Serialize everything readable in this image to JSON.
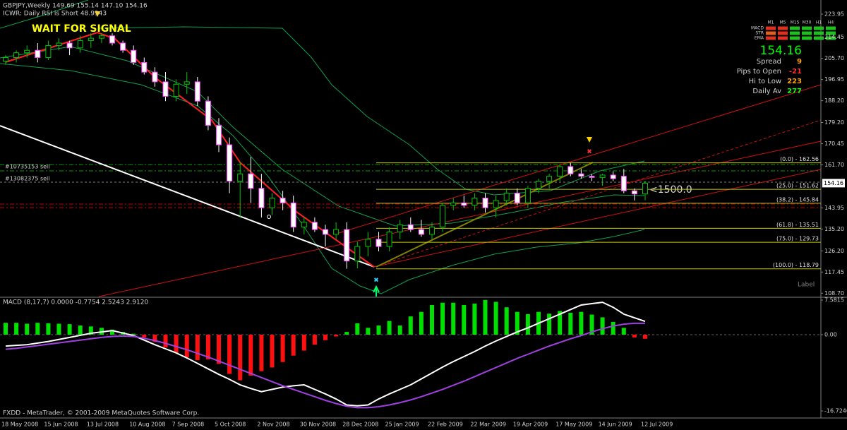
{
  "chart_data": [
    {
      "type": "candlestick",
      "title": "GBPJPY,Weekly  149.69 155.14 147.10 154.16",
      "subtitle": "ICWR: Daily RSI is Short 48.9343",
      "categories": [
        "18 May 2008",
        null,
        null,
        null,
        "15 Jun 2008",
        null,
        null,
        null,
        "13 Jul 2008",
        null,
        null,
        null,
        "10 Aug 2008",
        null,
        null,
        null,
        "7 Sep 2008",
        null,
        null,
        null,
        "5 Oct 2008",
        null,
        null,
        null,
        "2 Nov 2008",
        null,
        null,
        null,
        "30 Nov 2008",
        null,
        null,
        null,
        "28 Dec 2008",
        null,
        null,
        null,
        "25 Jan 2009",
        null,
        null,
        null,
        "22 Feb 2009",
        null,
        null,
        null,
        "22 Mar 2009",
        null,
        null,
        null,
        "19 Apr 2009",
        null,
        null,
        null,
        "17 May 2009",
        null,
        null,
        null,
        "14 Jun 2009",
        null,
        null,
        null,
        "12 Jul 2009"
      ],
      "open": [
        204.5,
        206,
        208,
        209,
        206,
        211,
        212,
        210,
        213,
        214,
        215,
        212,
        209,
        204,
        200,
        196,
        190,
        195,
        196,
        188,
        178,
        170,
        155,
        158,
        152,
        144,
        148,
        146,
        136,
        138,
        135,
        133,
        135,
        122,
        128,
        131,
        128,
        134,
        137,
        135,
        133,
        136,
        145,
        146,
        145,
        148,
        144,
        147,
        150,
        146,
        152,
        155,
        157,
        161,
        158,
        157,
        156.5,
        157.5,
        157,
        151,
        149.69
      ],
      "high": [
        207,
        209,
        211,
        212,
        213,
        214,
        213,
        215,
        216,
        216,
        216,
        213,
        211,
        206,
        202,
        200,
        197,
        200,
        198,
        190,
        181,
        173,
        163,
        165,
        158,
        150,
        151,
        149,
        140,
        140,
        137,
        138,
        138,
        130,
        134,
        134,
        136,
        139,
        140,
        139,
        138,
        146,
        148,
        149,
        150,
        150,
        149,
        152,
        152,
        153,
        156,
        158,
        162,
        162.56,
        160,
        158,
        158,
        159,
        160,
        152,
        155.14
      ],
      "low": [
        203,
        204,
        206,
        204,
        205,
        209,
        207,
        208,
        210,
        212,
        211,
        208,
        203,
        199,
        194,
        188,
        188,
        191,
        186,
        176,
        167,
        150,
        140,
        146,
        140,
        141,
        143,
        134,
        133,
        134,
        128,
        131,
        118.79,
        119,
        124,
        126,
        126,
        131,
        134,
        132,
        131,
        134,
        143,
        144,
        143,
        142,
        140,
        145,
        145,
        144,
        150,
        152,
        155,
        157,
        156,
        155,
        153,
        155,
        150,
        147,
        147.1
      ],
      "close": [
        206,
        208,
        209,
        206,
        211,
        212,
        210,
        213,
        214,
        215,
        212,
        209,
        204,
        200,
        196,
        190,
        195,
        196,
        188,
        178,
        170,
        155,
        158,
        152,
        144,
        148,
        146,
        136,
        138,
        135,
        133,
        135,
        122,
        128,
        131,
        128,
        134,
        137,
        135,
        133,
        136,
        145,
        146,
        145,
        148,
        144,
        147,
        150,
        146,
        152,
        155,
        157,
        161,
        158,
        157,
        156.5,
        157.5,
        156,
        151,
        149.69,
        154.16
      ],
      "up_color": "#00c800",
      "down_color": "#ffffff",
      "down_edge": "#ff40ff",
      "ylim": [
        107.04,
        229.78
      ],
      "yticks": [
        223.95,
        214.45,
        {
          "value": 205.7,
          "label": "205.70"
        },
        196.95,
        {
          "value": 188.2,
          "label": "188.20"
        },
        {
          "value": 179.2,
          "label": "179.20"
        },
        170.45,
        {
          "value": 161.7,
          "label": "161.70"
        },
        143.95,
        {
          "value": 135.2,
          "label": "135.20"
        },
        {
          "value": 126.2,
          "label": "126.20"
        },
        117.45,
        {
          "value": 108.7,
          "label": "108.70"
        }
      ],
      "fib_levels": [
        {
          "value": 162.56,
          "label": "(0.0) - 162.56"
        },
        {
          "value": 151.62,
          "label": "(25.0) - 151.62"
        },
        {
          "value": 145.84,
          "label": "(38.2) - 145.84"
        },
        {
          "value": 135.51,
          "label": "(61.8) - 135.51"
        },
        {
          "value": 129.73,
          "label": "(75.0) - 129.73"
        },
        {
          "value": 118.79,
          "label": "(100.0) - 118.79"
        }
      ],
      "fib_color": "#c8c800"
    },
    {
      "type": "macd",
      "title": "MACD (8,17,7) 0.0000 -0.7754 2.5243 2.9120",
      "histogram": {
        "color": "#00e000",
        "negative_color": "#ff1010",
        "values": [
          2.6,
          2.6,
          2.4,
          2.6,
          2.5,
          2.4,
          2.3,
          2.0,
          1.8,
          1.5,
          1.1,
          0.6,
          0.2,
          -0.6,
          -1.6,
          -2.8,
          -4.0,
          -5.0,
          -5.6,
          -5.4,
          -6.4,
          -8.6,
          -10.0,
          -9.0,
          -8.0,
          -7.2,
          -6.0,
          -4.6,
          -3.5,
          -2.2,
          -1.2,
          -0.4,
          0.6,
          2.5,
          1.5,
          2.0,
          3.0,
          2.0,
          4.0,
          5.0,
          6.5,
          7.0,
          7.0,
          6.5,
          6.8,
          7.6,
          7.2,
          6.0,
          5.0,
          4.5,
          5.0,
          4.6,
          5.2,
          4.8,
          5.0,
          4.4,
          3.8,
          2.8,
          1.5,
          -0.6,
          -0.9
        ]
      },
      "series": [
        {
          "color": "#ffffff",
          "values": [
            -2.5,
            -2.35,
            -2.2,
            -1.85,
            -1.5,
            -1.05,
            -0.6,
            -0.15,
            0.3,
            0.6,
            0.9,
            0.35,
            -0.2,
            -1.2,
            -2.2,
            -3.1,
            -4.0,
            -5.1,
            -6.3,
            -7.5,
            -8.7,
            -9.8,
            -11.0,
            -11.8,
            -12.5,
            -12.0,
            -11.5,
            -11.2,
            -11.0,
            -12.0,
            -13.0,
            -14.1,
            -15.4,
            -15.6,
            -15.4,
            -14.1,
            -13.0,
            -12.0,
            -11.0,
            -9.7,
            -8.4,
            -7.1,
            -5.9,
            -4.8,
            -3.7,
            -2.5,
            -1.4,
            -0.4,
            0.6,
            1.5,
            2.5,
            3.5,
            4.5,
            5.5,
            6.5,
            6.8,
            7.1,
            6.0,
            4.5,
            3.7,
            2.9
          ]
        },
        {
          "color": "#a040e0",
          "values": [
            -3.2,
            -3.0,
            -2.7,
            -2.4,
            -2.1,
            -1.8,
            -1.5,
            -1.2,
            -0.9,
            -0.6,
            -0.4,
            -0.3,
            -0.4,
            -0.8,
            -1.3,
            -1.9,
            -2.6,
            -3.3,
            -4.1,
            -4.9,
            -5.8,
            -6.7,
            -7.6,
            -8.5,
            -9.4,
            -10.3,
            -11.2,
            -12.0,
            -12.8,
            -13.6,
            -14.4,
            -15.1,
            -15.7,
            -16.0,
            -16.0,
            -15.8,
            -15.4,
            -14.9,
            -14.3,
            -13.6,
            -12.8,
            -12.0,
            -11.1,
            -10.2,
            -9.2,
            -8.2,
            -7.2,
            -6.2,
            -5.2,
            -4.3,
            -3.4,
            -2.5,
            -1.7,
            -0.9,
            -0.2,
            0.6,
            1.3,
            1.9,
            2.3,
            2.5,
            2.5
          ]
        }
      ],
      "ylim": [
        -18.27,
        8.2
      ],
      "yticks": [
        7.5815,
        {
          "value": 0,
          "label": "0.00"
        },
        -16.7246
      ]
    }
  ],
  "annotations": {
    "signal": "WAIT FOR SIGNAL",
    "order_1": "#10735153 sell",
    "order_2": "#13082375 sell",
    "lots": "<1500.0",
    "label": "Label"
  },
  "info_panel": {
    "columns": [
      "M1",
      "M5",
      "M15",
      "M30",
      "H1",
      "H4"
    ],
    "rows": [
      {
        "name": "MACD",
        "colors": [
          "#e03020",
          "#e03020",
          "#20c020",
          "#20c020",
          "#20c020",
          "#20c020"
        ]
      },
      {
        "name": "STR",
        "colors": [
          "#e06020",
          "#e03020",
          "#20c020",
          "#20c020",
          "#20c020",
          "#20c020"
        ]
      },
      {
        "name": "EMA",
        "colors": [
          "#e03020",
          "#e03020",
          "#20c020",
          "#20c020",
          "#20c020",
          "#20c020"
        ]
      }
    ],
    "stats": [
      {
        "label": "Spread",
        "value": 9,
        "color": "#ffa500"
      },
      {
        "label": "Pips to Open",
        "value": -21,
        "color": "#ff3030"
      },
      {
        "label": "Hi to Low",
        "value": 223,
        "color": "#ffa500"
      },
      {
        "label": "Daily Av",
        "value": 277,
        "color": "#00ff00"
      }
    ]
  },
  "footer": "FXDD - MetaTrader, © 2001-2009 MetaQuotes Software Corp."
}
